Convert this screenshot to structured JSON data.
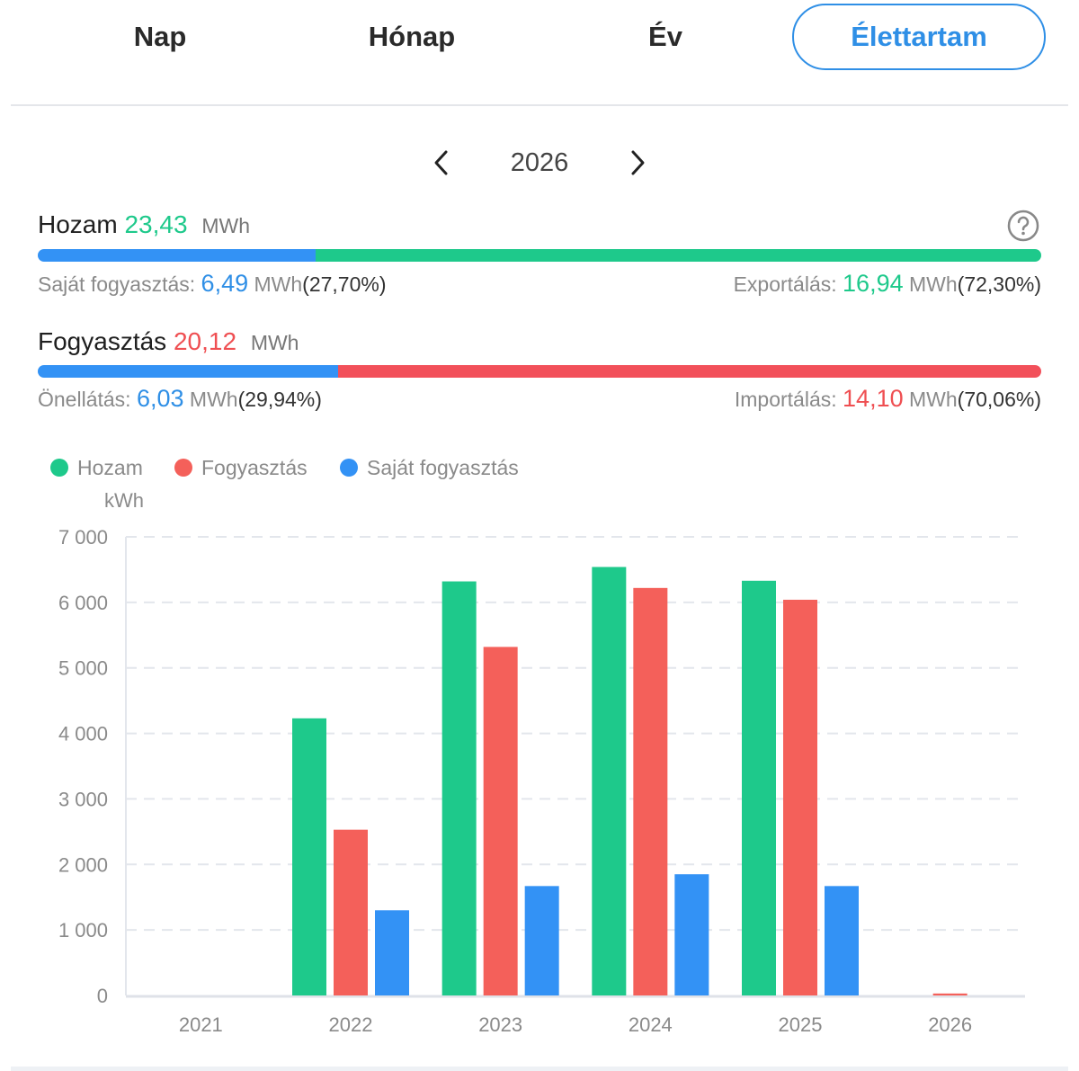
{
  "tabs": [
    {
      "label": "Nap",
      "active": false
    },
    {
      "label": "Hónap",
      "active": false
    },
    {
      "label": "Év",
      "active": false
    },
    {
      "label": "Élettartam",
      "active": true
    }
  ],
  "year_nav": {
    "year": "2026",
    "prev_icon": "chevron-left-icon",
    "next_icon": "chevron-right-icon"
  },
  "summary": {
    "yield": {
      "title": "Hozam",
      "value": "23,43",
      "unit": "MWh",
      "self_label": "Saját fogyasztás:",
      "self_value": "6,49",
      "self_unit": "MWh",
      "self_percent": "(27,70%)",
      "export_label": "Exportálás:",
      "export_value": "16,94",
      "export_unit": "MWh",
      "export_percent": "(72,30%)",
      "self_fraction": 0.277
    },
    "consumption": {
      "title": "Fogyasztás",
      "value": "20,12",
      "unit": "MWh",
      "self_label": "Önellátás:",
      "self_value": "6,03",
      "self_unit": "MWh",
      "self_percent": "(29,94%)",
      "import_label": "Importálás:",
      "import_value": "14,10",
      "import_unit": "MWh",
      "import_percent": "(70,06%)",
      "self_fraction": 0.2994
    },
    "help_icon": "question-circle-icon"
  },
  "colors": {
    "green": "#1ec98b",
    "red": "#f4605a",
    "blue": "#3392f5",
    "accent": "#2f8fe6"
  },
  "chart_data": {
    "type": "bar",
    "ylabel": "kWh",
    "categories": [
      "2021",
      "2022",
      "2023",
      "2024",
      "2025",
      "2026"
    ],
    "series": [
      {
        "name": "Hozam",
        "color": "#1ec98b",
        "values": [
          0,
          4230,
          6320,
          6540,
          6330,
          0
        ]
      },
      {
        "name": "Fogyasztás",
        "color": "#f4605a",
        "values": [
          0,
          2530,
          5320,
          6220,
          6040,
          30
        ]
      },
      {
        "name": "Saját fogyasztás",
        "color": "#3392f5",
        "values": [
          0,
          1300,
          1670,
          1850,
          1670,
          0
        ]
      }
    ],
    "ylim": [
      0,
      7000
    ],
    "yticks": [
      0,
      1000,
      2000,
      3000,
      4000,
      5000,
      6000,
      7000
    ],
    "ytick_labels": [
      "0",
      "1 000",
      "2 000",
      "3 000",
      "4 000",
      "5 000",
      "6 000",
      "7 000"
    ],
    "grid": true,
    "legend": "top-left"
  }
}
